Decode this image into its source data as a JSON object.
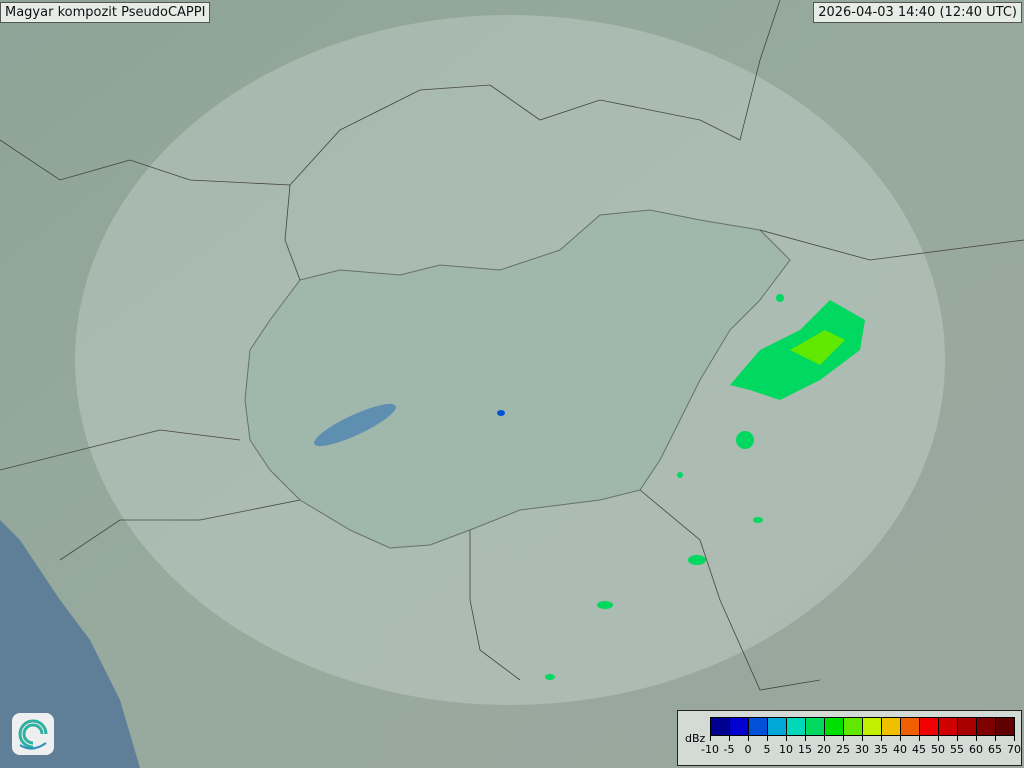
{
  "title": "Magyar kompozit  PseudoCAPPI",
  "timestamp": "2026-04-03 14:40 (12:40 UTC)",
  "legend": {
    "unit": "dBz",
    "labels": [
      "-10",
      "-5",
      "0",
      "5",
      "10",
      "15",
      "20",
      "25",
      "30",
      "35",
      "40",
      "45",
      "50",
      "55",
      "60",
      "65",
      "70"
    ],
    "colors": [
      "#000090",
      "#0000d0",
      "#0050d8",
      "#00a8d8",
      "#00d8b8",
      "#00d860",
      "#00e000",
      "#60e800",
      "#c0f000",
      "#f0c000",
      "#f06000",
      "#f00000",
      "#d00000",
      "#a80000",
      "#800000",
      "#600000"
    ]
  },
  "logo": "omsz-swirl-logo"
}
